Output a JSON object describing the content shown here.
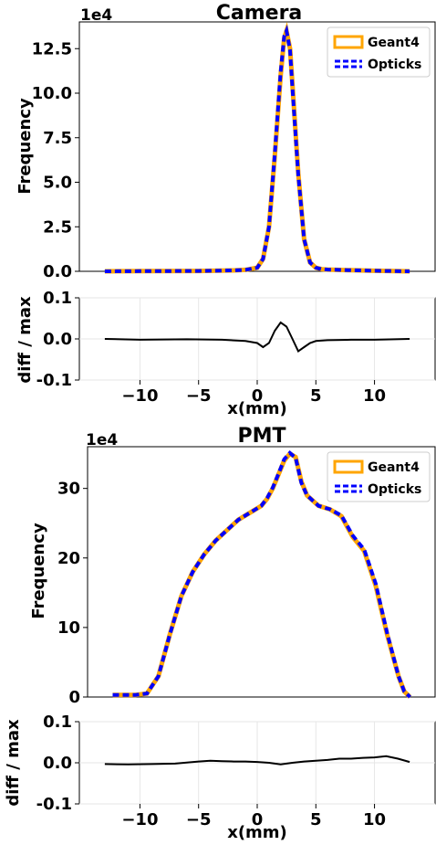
{
  "chart_data": [
    {
      "type": "line",
      "title": "Camera",
      "ylabel": "Frequency",
      "xlabel": "",
      "offset_label": "1e4",
      "ylim": [
        0,
        14
      ],
      "xlim": [
        -14,
        14
      ],
      "yticks": [
        "0.0",
        "2.5",
        "5.0",
        "7.5",
        "10.0",
        "12.5"
      ],
      "ytick_values": [
        0,
        2.5,
        5,
        7.5,
        10,
        12.5
      ],
      "legend_position": "top-right",
      "series": [
        {
          "name": "Geant4",
          "color": "#ffa500",
          "style": "solid",
          "x": [
            -13,
            -10,
            -5,
            -2,
            -1,
            0,
            0.5,
            1,
            1.5,
            2,
            2.3,
            2.5,
            2.8,
            3,
            3.5,
            4,
            4.5,
            5,
            5.5,
            6,
            8,
            10,
            13
          ],
          "y": [
            0,
            0.01,
            0.02,
            0.05,
            0.08,
            0.2,
            0.7,
            2.5,
            6.5,
            11.0,
            13.1,
            13.5,
            12.5,
            10.5,
            5.5,
            1.8,
            0.5,
            0.2,
            0.12,
            0.1,
            0.06,
            0.03,
            0
          ]
        },
        {
          "name": "Opticks",
          "color": "#0000ff",
          "style": "dashed",
          "x": [
            -13,
            -10,
            -5,
            -2,
            -1,
            0,
            0.5,
            1,
            1.5,
            2,
            2.3,
            2.5,
            2.8,
            3,
            3.5,
            4,
            4.5,
            5,
            5.5,
            6,
            8,
            10,
            13
          ],
          "y": [
            0,
            0.01,
            0.02,
            0.05,
            0.08,
            0.2,
            0.7,
            2.5,
            6.6,
            11.2,
            13.2,
            13.5,
            12.4,
            10.3,
            5.4,
            1.8,
            0.5,
            0.2,
            0.12,
            0.1,
            0.06,
            0.03,
            0
          ]
        }
      ]
    },
    {
      "type": "scatter",
      "title": "",
      "ylabel": "diff / max",
      "xlabel": "x(mm)",
      "ylim": [
        -0.1,
        0.1
      ],
      "xlim": [
        -14,
        14
      ],
      "yticks": [
        "0.1",
        "0.0",
        "-0.1"
      ],
      "ytick_values": [
        0.1,
        0,
        -0.1
      ],
      "xticks": [
        "−10",
        "−5",
        "0",
        "5",
        "10"
      ],
      "xtick_values": [
        -10,
        -5,
        0,
        5,
        10
      ],
      "grid": true,
      "series": [
        {
          "color": "#000000",
          "x": [
            -13,
            -10,
            -6,
            -3,
            -1,
            0,
            0.5,
            1,
            1.5,
            2,
            2.5,
            3,
            3.5,
            4,
            4.5,
            5,
            6,
            8,
            10,
            13
          ],
          "y": [
            0,
            -0.002,
            -0.001,
            -0.002,
            -0.005,
            -0.01,
            -0.02,
            -0.01,
            0.02,
            0.04,
            0.03,
            0.0,
            -0.03,
            -0.02,
            -0.01,
            -0.005,
            -0.003,
            -0.002,
            -0.002,
            0
          ]
        }
      ]
    },
    {
      "type": "line",
      "title": "PMT",
      "ylabel": "Frequency",
      "xlabel": "",
      "offset_label": "1e4",
      "ylim": [
        0,
        36
      ],
      "xlim": [
        -14,
        14
      ],
      "yticks": [
        "0",
        "10",
        "20",
        "30"
      ],
      "ytick_values": [
        0,
        10,
        20,
        30
      ],
      "legend_position": "top-right",
      "series": [
        {
          "name": "Geant4",
          "color": "#ffa500",
          "style": "solid",
          "x": [
            -13,
            -11,
            -10,
            -9,
            -8,
            -7,
            -6,
            -5,
            -4,
            -3,
            -2,
            -1,
            0,
            0.5,
            1,
            1.5,
            2,
            2.5,
            3,
            3.5,
            4,
            5,
            6,
            7,
            8,
            9,
            10,
            11,
            12,
            12.5,
            13
          ],
          "y": [
            0.3,
            0.3,
            0.5,
            3,
            9,
            14.5,
            18,
            20.5,
            22.5,
            24,
            25.5,
            26.5,
            27.5,
            28.5,
            30,
            32,
            34,
            35,
            34.5,
            31,
            29,
            27.5,
            27,
            26,
            23,
            21,
            16,
            9,
            3,
            0.8,
            0
          ]
        },
        {
          "name": "Opticks",
          "color": "#0000ff",
          "style": "dashed",
          "x": [
            -13,
            -11,
            -10,
            -9,
            -8,
            -7,
            -6,
            -5,
            -4,
            -3,
            -2,
            -1,
            0,
            0.5,
            1,
            1.5,
            2,
            2.5,
            3,
            3.5,
            4,
            5,
            6,
            7,
            8,
            9,
            10,
            11,
            12,
            12.5,
            13
          ],
          "y": [
            0.3,
            0.3,
            0.5,
            3,
            9,
            14.5,
            18,
            20.5,
            22.5,
            24,
            25.5,
            26.5,
            27.5,
            28.6,
            30.1,
            32.1,
            34.2,
            35.1,
            34.4,
            30.8,
            29,
            27.5,
            27,
            26.1,
            23.2,
            21.2,
            16.3,
            9.2,
            3,
            0.8,
            0
          ]
        }
      ]
    },
    {
      "type": "line",
      "title": "",
      "ylabel": "diff / max",
      "xlabel": "x(mm)",
      "ylim": [
        -0.1,
        0.1
      ],
      "xlim": [
        -14,
        14
      ],
      "yticks": [
        "0.1",
        "0.0",
        "-0.1"
      ],
      "ytick_values": [
        0.1,
        0,
        -0.1
      ],
      "xticks": [
        "−10",
        "−5",
        "0",
        "5",
        "10"
      ],
      "xtick_values": [
        -10,
        -5,
        0,
        5,
        10
      ],
      "grid": true,
      "series": [
        {
          "color": "#000000",
          "x": [
            -13,
            -11,
            -9,
            -7,
            -5,
            -4,
            -3,
            -2,
            -1,
            0,
            1,
            2,
            3,
            4,
            5,
            6,
            7,
            8,
            9,
            10,
            11,
            12,
            13
          ],
          "y": [
            -0.003,
            -0.004,
            -0.003,
            -0.002,
            0.003,
            0.005,
            0.004,
            0.003,
            0.003,
            0.002,
            0.0,
            -0.004,
            0.0,
            0.003,
            0.005,
            0.007,
            0.01,
            0.01,
            0.012,
            0.013,
            0.016,
            0.01,
            0.002
          ]
        }
      ]
    }
  ]
}
